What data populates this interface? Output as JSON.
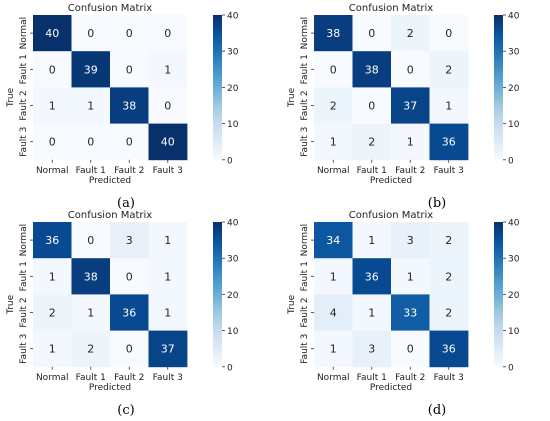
{
  "colorscale": {
    "min": 0,
    "max": 40,
    "ticks": [
      "0",
      "10",
      "20",
      "30",
      "40"
    ],
    "low_color": "#f7fbff",
    "high_color": "#08306b"
  },
  "chart_data": [
    {
      "type": "heatmap",
      "panel_label": "(a)",
      "title": "Confusion Matrix",
      "xlabel": "Predicted",
      "ylabel": "True",
      "x_categories": [
        "Normal",
        "Fault 1",
        "Fault 2",
        "Fault 3"
      ],
      "y_categories": [
        "Normal",
        "Fault 1",
        "Fault 2",
        "Fault 3"
      ],
      "values": [
        [
          40,
          0,
          0,
          0
        ],
        [
          0,
          39,
          0,
          1
        ],
        [
          1,
          1,
          38,
          0
        ],
        [
          0,
          0,
          0,
          40
        ]
      ],
      "colorbar_range": [
        0,
        40
      ]
    },
    {
      "type": "heatmap",
      "panel_label": "(b)",
      "title": "Confusion Matrix",
      "xlabel": "Predicted",
      "ylabel": "True",
      "x_categories": [
        "Normal",
        "Fault 1",
        "Fault 2",
        "Fault 3"
      ],
      "y_categories": [
        "Normal",
        "Fault 1",
        "Fault 2",
        "Fault 3"
      ],
      "values": [
        [
          38,
          0,
          2,
          0
        ],
        [
          0,
          38,
          0,
          2
        ],
        [
          2,
          0,
          37,
          1
        ],
        [
          1,
          2,
          1,
          36
        ]
      ],
      "colorbar_range": [
        0,
        40
      ]
    },
    {
      "type": "heatmap",
      "panel_label": "(c)",
      "title": "Confusion Matrix",
      "xlabel": "Predicted",
      "ylabel": "True",
      "x_categories": [
        "Normal",
        "Fault 1",
        "Fault 2",
        "Fault 3"
      ],
      "y_categories": [
        "Normal",
        "Fault 1",
        "Fault 2",
        "Fault 3"
      ],
      "values": [
        [
          36,
          0,
          3,
          1
        ],
        [
          1,
          38,
          0,
          1
        ],
        [
          2,
          1,
          36,
          1
        ],
        [
          1,
          2,
          0,
          37
        ]
      ],
      "colorbar_range": [
        0,
        40
      ]
    },
    {
      "type": "heatmap",
      "panel_label": "(d)",
      "title": "Confusion Matrix",
      "xlabel": "Predicted",
      "ylabel": "True",
      "x_categories": [
        "Normal",
        "Fault 1",
        "Fault 2",
        "Fault 3"
      ],
      "y_categories": [
        "Normal",
        "Fault 1",
        "Fault 2",
        "Fault 3"
      ],
      "values": [
        [
          34,
          1,
          3,
          2
        ],
        [
          1,
          36,
          1,
          2
        ],
        [
          4,
          1,
          33,
          2
        ],
        [
          1,
          3,
          0,
          36
        ]
      ],
      "colorbar_range": [
        0,
        40
      ]
    }
  ]
}
